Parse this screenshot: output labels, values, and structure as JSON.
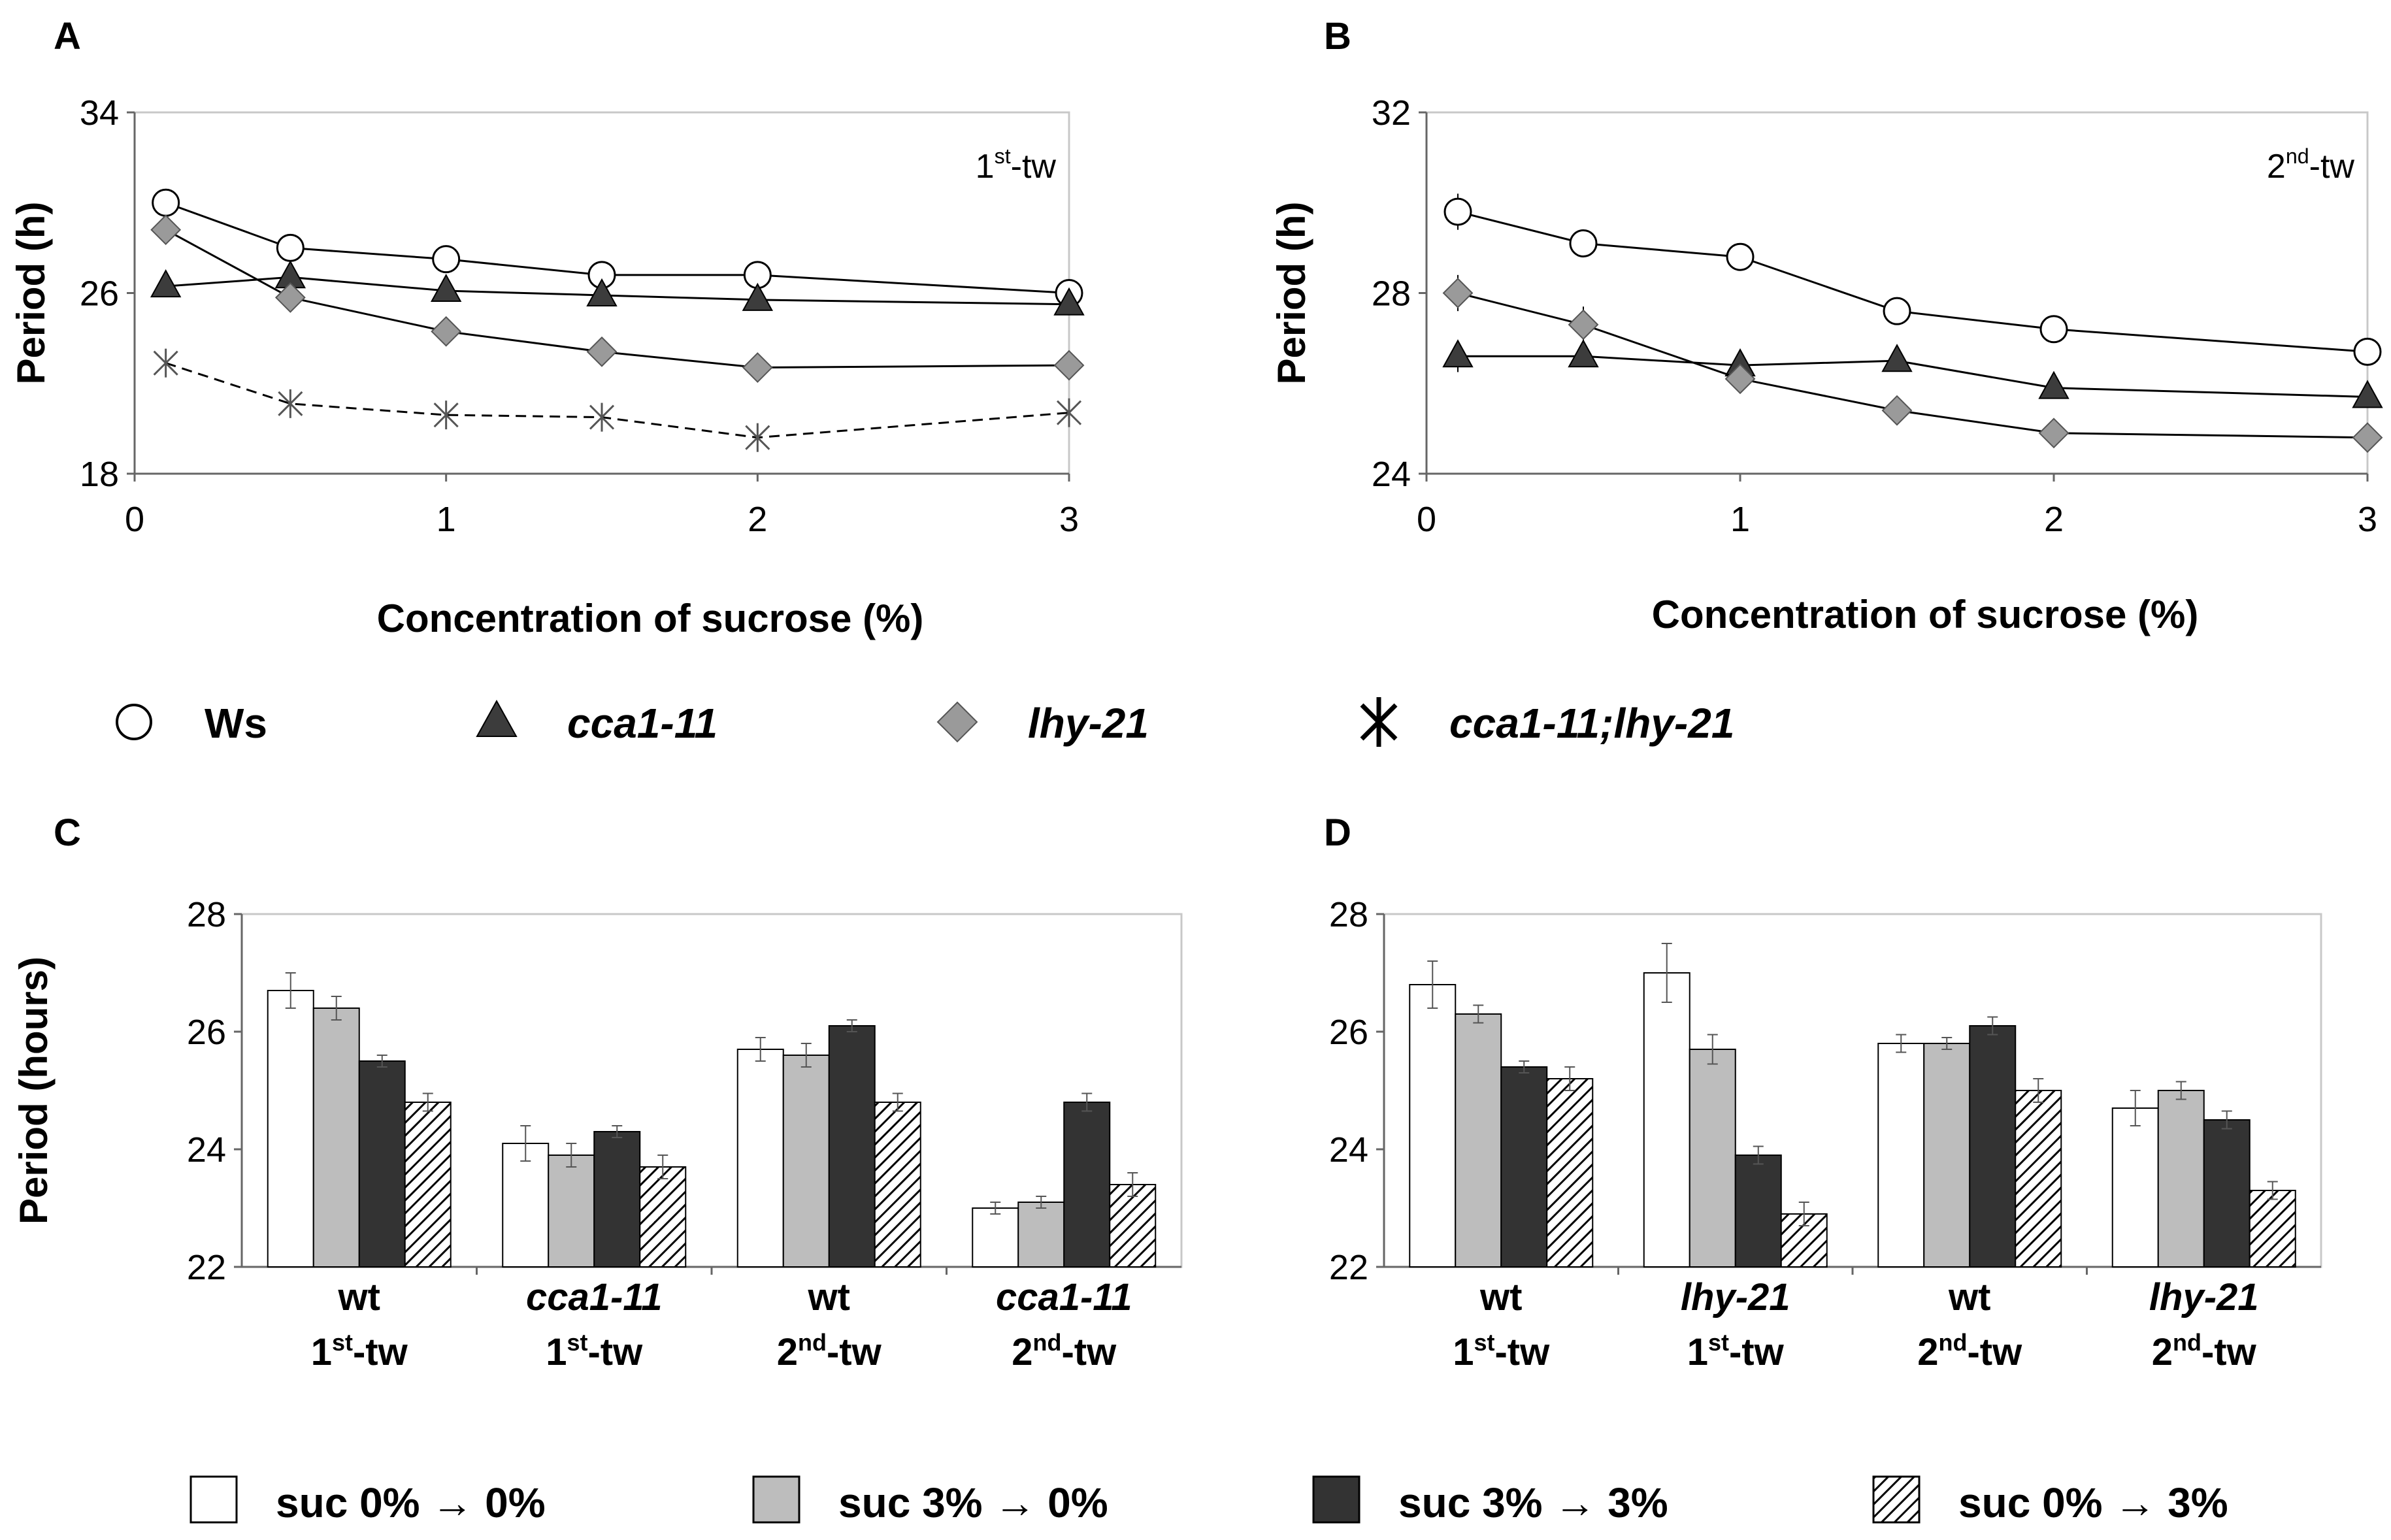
{
  "colors": {
    "ws": "#ffffff",
    "cca1": "#3c3c3c",
    "lhy": "#9a9a9a",
    "double": "#555555",
    "bar_0_0": "#ffffff",
    "bar_3_0": "#bdbdbd",
    "bar_3_3": "#333333",
    "bar_0_3": "hatch"
  },
  "line_legend": [
    {
      "key": "ws",
      "label": "Ws",
      "marker": "circle",
      "italic": false
    },
    {
      "key": "cca1",
      "label": "cca1-11",
      "marker": "triangle",
      "italic": true
    },
    {
      "key": "lhy",
      "label": "lhy-21",
      "marker": "diamond",
      "italic": true
    },
    {
      "key": "double",
      "label": "cca1-11;lhy-21",
      "marker": "asterisk",
      "italic": true
    }
  ],
  "bar_legend": [
    {
      "key": "bar_0_0",
      "label": "suc 0% → 0%"
    },
    {
      "key": "bar_3_0",
      "label": "suc 3% → 0%"
    },
    {
      "key": "bar_3_3",
      "label": "suc 3% → 3%"
    },
    {
      "key": "bar_0_3",
      "label": "suc 0% → 3%"
    }
  ],
  "chart_data": [
    {
      "panel": "A",
      "type": "line",
      "annotation": {
        "base": "1",
        "sup": "st",
        "rest": "-tw"
      },
      "xlabel": "Concentration of sucrose (%)",
      "ylabel": "Period (h)",
      "xlim": [
        0,
        3
      ],
      "ylim": [
        18,
        34
      ],
      "xticks": [
        "0",
        "1",
        "2",
        "3"
      ],
      "yticks": [
        "18",
        "26",
        "34"
      ],
      "x": [
        0.1,
        0.5,
        1,
        1.5,
        2,
        3
      ],
      "series": [
        {
          "key": "ws",
          "name": "Ws",
          "marker": "circle",
          "dashed": false,
          "values": [
            30.0,
            28.0,
            27.5,
            26.8,
            26.8,
            26.0
          ],
          "err": [
            0.3,
            0.3,
            0.3,
            0.3,
            0.3,
            0.3
          ]
        },
        {
          "key": "cca1",
          "name": "cca1-11",
          "marker": "triangle",
          "dashed": false,
          "values": [
            26.3,
            26.7,
            26.1,
            25.9,
            25.7,
            25.5
          ],
          "err": [
            0.3,
            0.3,
            0.3,
            0.3,
            0.3,
            0.3
          ]
        },
        {
          "key": "lhy",
          "name": "lhy-21",
          "marker": "diamond",
          "dashed": false,
          "values": [
            28.8,
            25.8,
            24.3,
            23.4,
            22.7,
            22.8
          ],
          "err": [
            0.3,
            0.3,
            0.3,
            0.3,
            0.3,
            0.3
          ]
        },
        {
          "key": "double",
          "name": "cca1-11;lhy-21",
          "marker": "asterisk",
          "dashed": true,
          "values": [
            22.9,
            21.1,
            20.6,
            20.5,
            19.6,
            20.7
          ],
          "err": [
            0.3,
            0.3,
            0.3,
            0.3,
            0.3,
            0.3
          ]
        }
      ]
    },
    {
      "panel": "B",
      "type": "line",
      "annotation": {
        "base": "2",
        "sup": "nd",
        "rest": "-tw"
      },
      "xlabel": "Concentration of sucrose (%)",
      "ylabel": "Period (h)",
      "xlim": [
        0,
        3
      ],
      "ylim": [
        24,
        32
      ],
      "xticks": [
        "0",
        "1",
        "2",
        "3"
      ],
      "yticks": [
        "24",
        "28",
        "32"
      ],
      "x": [
        0.1,
        0.5,
        1,
        1.5,
        2,
        3
      ],
      "series": [
        {
          "key": "ws",
          "name": "Ws",
          "marker": "circle",
          "dashed": false,
          "values": [
            29.8,
            29.1,
            28.8,
            27.6,
            27.2,
            26.7
          ],
          "err": [
            0.4,
            0.2,
            0.15,
            0.15,
            0.15,
            0.15
          ]
        },
        {
          "key": "cca1",
          "name": "cca1-11",
          "marker": "triangle",
          "dashed": false,
          "values": [
            26.6,
            26.6,
            26.4,
            26.5,
            25.9,
            25.7
          ],
          "err": [
            0.35,
            0.15,
            0.15,
            0.15,
            0.15,
            0.15
          ]
        },
        {
          "key": "lhy",
          "name": "lhy-21",
          "marker": "diamond",
          "dashed": false,
          "values": [
            28.0,
            27.3,
            26.1,
            25.4,
            24.9,
            24.8
          ],
          "err": [
            0.4,
            0.4,
            0.15,
            0.15,
            0.15,
            0.15
          ]
        }
      ]
    },
    {
      "panel": "C",
      "type": "bar",
      "ylabel": "Period (hours)",
      "ylim": [
        22,
        28
      ],
      "yticks": [
        "22",
        "24",
        "26",
        "28"
      ],
      "categories": [
        {
          "line1": "wt",
          "italic": false,
          "base": "1",
          "sup": "st",
          "rest": "-tw"
        },
        {
          "line1": "cca1-11",
          "italic": true,
          "base": "1",
          "sup": "st",
          "rest": "-tw"
        },
        {
          "line1": "wt",
          "italic": false,
          "base": "2",
          "sup": "nd",
          "rest": "-tw"
        },
        {
          "line1": "cca1-11",
          "italic": true,
          "base": "2",
          "sup": "nd",
          "rest": "-tw"
        }
      ],
      "series": [
        {
          "key": "bar_0_0",
          "name": "suc 0% → 0%",
          "values": [
            26.7,
            24.1,
            25.7,
            23.0
          ],
          "err": [
            0.3,
            0.3,
            0.2,
            0.1
          ]
        },
        {
          "key": "bar_3_0",
          "name": "suc 3% → 0%",
          "values": [
            26.4,
            23.9,
            25.6,
            23.1
          ],
          "err": [
            0.2,
            0.2,
            0.2,
            0.1
          ]
        },
        {
          "key": "bar_3_3",
          "name": "suc 3% → 3%",
          "values": [
            25.5,
            24.3,
            26.1,
            24.8
          ],
          "err": [
            0.1,
            0.1,
            0.1,
            0.15
          ]
        },
        {
          "key": "bar_0_3",
          "name": "suc 0% → 3%",
          "values": [
            24.8,
            23.7,
            24.8,
            23.4
          ],
          "err": [
            0.15,
            0.2,
            0.15,
            0.2
          ]
        }
      ]
    },
    {
      "panel": "D",
      "type": "bar",
      "ylabel": "",
      "ylim": [
        22,
        28
      ],
      "yticks": [
        "22",
        "24",
        "26",
        "28"
      ],
      "categories": [
        {
          "line1": "wt",
          "italic": false,
          "base": "1",
          "sup": "st",
          "rest": "-tw"
        },
        {
          "line1": "lhy-21",
          "italic": true,
          "base": "1",
          "sup": "st",
          "rest": "-tw"
        },
        {
          "line1": "wt",
          "italic": false,
          "base": "2",
          "sup": "nd",
          "rest": "-tw"
        },
        {
          "line1": "lhy-21",
          "italic": true,
          "base": "2",
          "sup": "nd",
          "rest": "-tw"
        }
      ],
      "series": [
        {
          "key": "bar_0_0",
          "name": "suc 0% → 0%",
          "values": [
            26.8,
            27.0,
            25.8,
            24.7
          ],
          "err": [
            0.4,
            0.5,
            0.15,
            0.3
          ]
        },
        {
          "key": "bar_3_0",
          "name": "suc 3% → 0%",
          "values": [
            26.3,
            25.7,
            25.8,
            25.0
          ],
          "err": [
            0.15,
            0.25,
            0.1,
            0.15
          ]
        },
        {
          "key": "bar_3_3",
          "name": "suc 3% → 3%",
          "values": [
            25.4,
            23.9,
            26.1,
            24.5
          ],
          "err": [
            0.1,
            0.15,
            0.15,
            0.15
          ]
        },
        {
          "key": "bar_0_3",
          "name": "suc 0% → 3%",
          "values": [
            25.2,
            22.9,
            25.0,
            23.3
          ],
          "err": [
            0.2,
            0.2,
            0.2,
            0.15
          ]
        }
      ]
    }
  ]
}
